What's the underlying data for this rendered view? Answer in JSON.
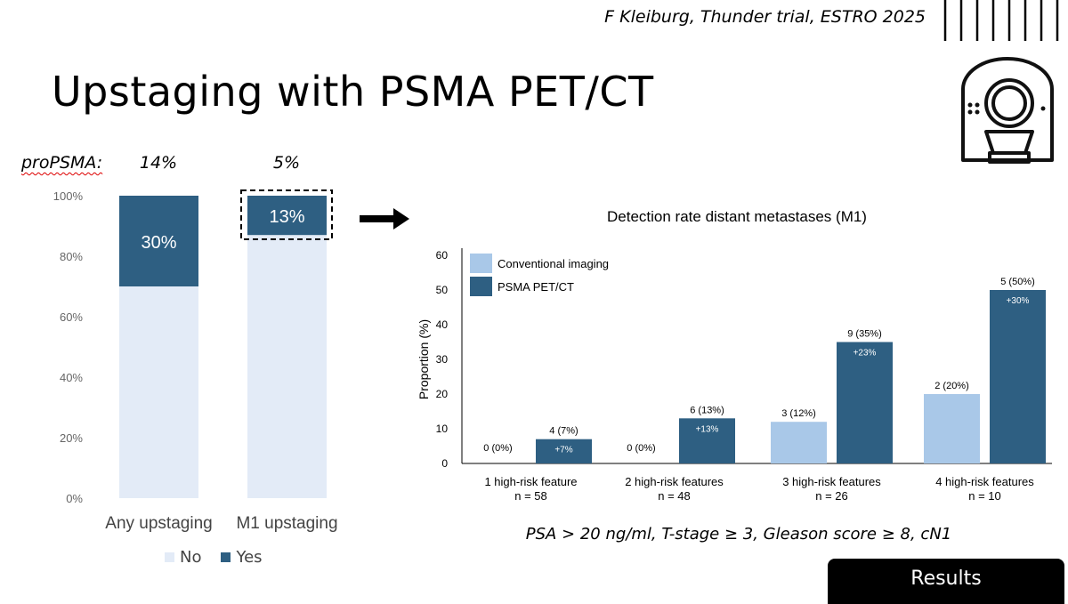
{
  "header": {
    "citation": "F Kleiburg, Thunder trial, ESTRO 2025",
    "title": "Upstaging with PSMA PET/CT"
  },
  "propsma": {
    "label": "proPSMA:",
    "values": [
      "14%",
      "5%"
    ]
  },
  "footnote": "PSA > 20 ng/ml, T-stage ≥ 3, Gleason score ≥ 8, cN1",
  "results_label": "Results",
  "colors": {
    "no": "#e3ebf7",
    "yes": "#2e5f82",
    "conventional": "#a9c8e8",
    "psma": "#2e5f82"
  },
  "icons": [
    "barcode-icon",
    "pet-scanner-icon",
    "right-arrow-icon"
  ],
  "chart_data": [
    {
      "type": "bar",
      "stacked": true,
      "categories": [
        "Any upstaging",
        "M1 upstaging"
      ],
      "series": [
        {
          "name": "No",
          "values": [
            70,
            87
          ]
        },
        {
          "name": "Yes",
          "values": [
            30,
            13
          ]
        }
      ],
      "data_labels": [
        "30%",
        "13%"
      ],
      "ylim": [
        0,
        100
      ],
      "yticks": [
        "0%",
        "20%",
        "40%",
        "60%",
        "80%",
        "100%"
      ],
      "legend": {
        "position": "bottom",
        "entries": [
          "No",
          "Yes"
        ]
      },
      "grid": false
    },
    {
      "type": "bar",
      "title": "Detection rate distant metastases (M1)",
      "ylabel": "Proportion (%)",
      "ylim": [
        0,
        60
      ],
      "yticks": [
        "0",
        "10",
        "20",
        "30",
        "40",
        "50",
        "60"
      ],
      "categories": [
        {
          "name": "1 high-risk feature",
          "n": "n = 58"
        },
        {
          "name": "2 high-risk features",
          "n": "n = 48"
        },
        {
          "name": "3 high-risk features",
          "n": "n = 26"
        },
        {
          "name": "4 high-risk features",
          "n": "n = 10"
        }
      ],
      "series": [
        {
          "name": "Conventional imaging",
          "values": [
            0,
            0,
            12,
            20
          ],
          "labels": [
            "0 (0%)",
            "0 (0%)",
            "3 (12%)",
            "2 (20%)"
          ]
        },
        {
          "name": "PSMA PET/CT",
          "values": [
            7,
            13,
            35,
            50
          ],
          "labels": [
            "4 (7%)",
            "6 (13%)",
            "9 (35%)",
            "5 (50%)"
          ],
          "inner_labels": [
            "+7%",
            "+13%",
            "+23%",
            "+30%"
          ]
        }
      ],
      "legend": {
        "position": "top-left"
      },
      "grid": false
    }
  ]
}
